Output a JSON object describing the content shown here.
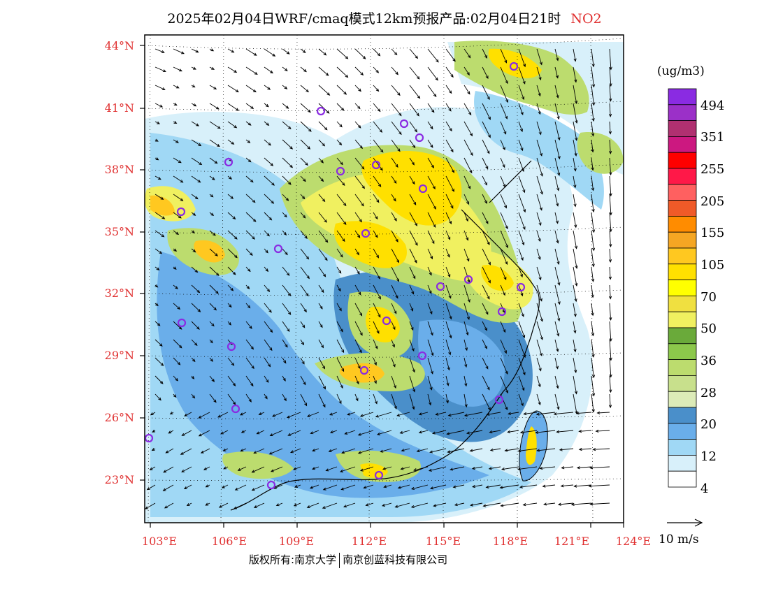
{
  "title": {
    "main": "2025年02月04日WRF/cmaq模式12km预报产品:02月04日21时",
    "species": "NO2",
    "species_color": "#e03030"
  },
  "map": {
    "lat_labels": [
      "44°N",
      "41°N",
      "38°N",
      "35°N",
      "32°N",
      "29°N",
      "26°N",
      "23°N"
    ],
    "lon_labels": [
      "103°E",
      "106°E",
      "109°E",
      "112°E",
      "115°E",
      "118°E",
      "121°E",
      "124°E"
    ],
    "label_color": "#e03030"
  },
  "colorbar": {
    "unit": "(ug/m3)",
    "colors_top_to_bottom": [
      "#8a2be2",
      "#9b30c8",
      "#b03070",
      "#cc1880",
      "#ff0000",
      "#ff1848",
      "#ff6060",
      "#f05a28",
      "#ff8c00",
      "#f5a623",
      "#ffc820",
      "#ffe000",
      "#ffff00",
      "#f0e040",
      "#f0f060",
      "#6aaa3a",
      "#8cc84b",
      "#bcdc6e",
      "#c8e08c",
      "#dcebb8",
      "#4a8fca",
      "#6aaeea",
      "#a0d8f5",
      "#d8f0fa",
      "#ffffff"
    ],
    "labels": [
      "494",
      "351",
      "255",
      "205",
      "155",
      "105",
      "70",
      "50",
      "36",
      "28",
      "20",
      "12",
      "4"
    ]
  },
  "wind_reference": {
    "label": "10 m/s"
  },
  "copyright": {
    "left": "版权所有:南京大学",
    "right": "南京创蓝科技有限公司"
  }
}
